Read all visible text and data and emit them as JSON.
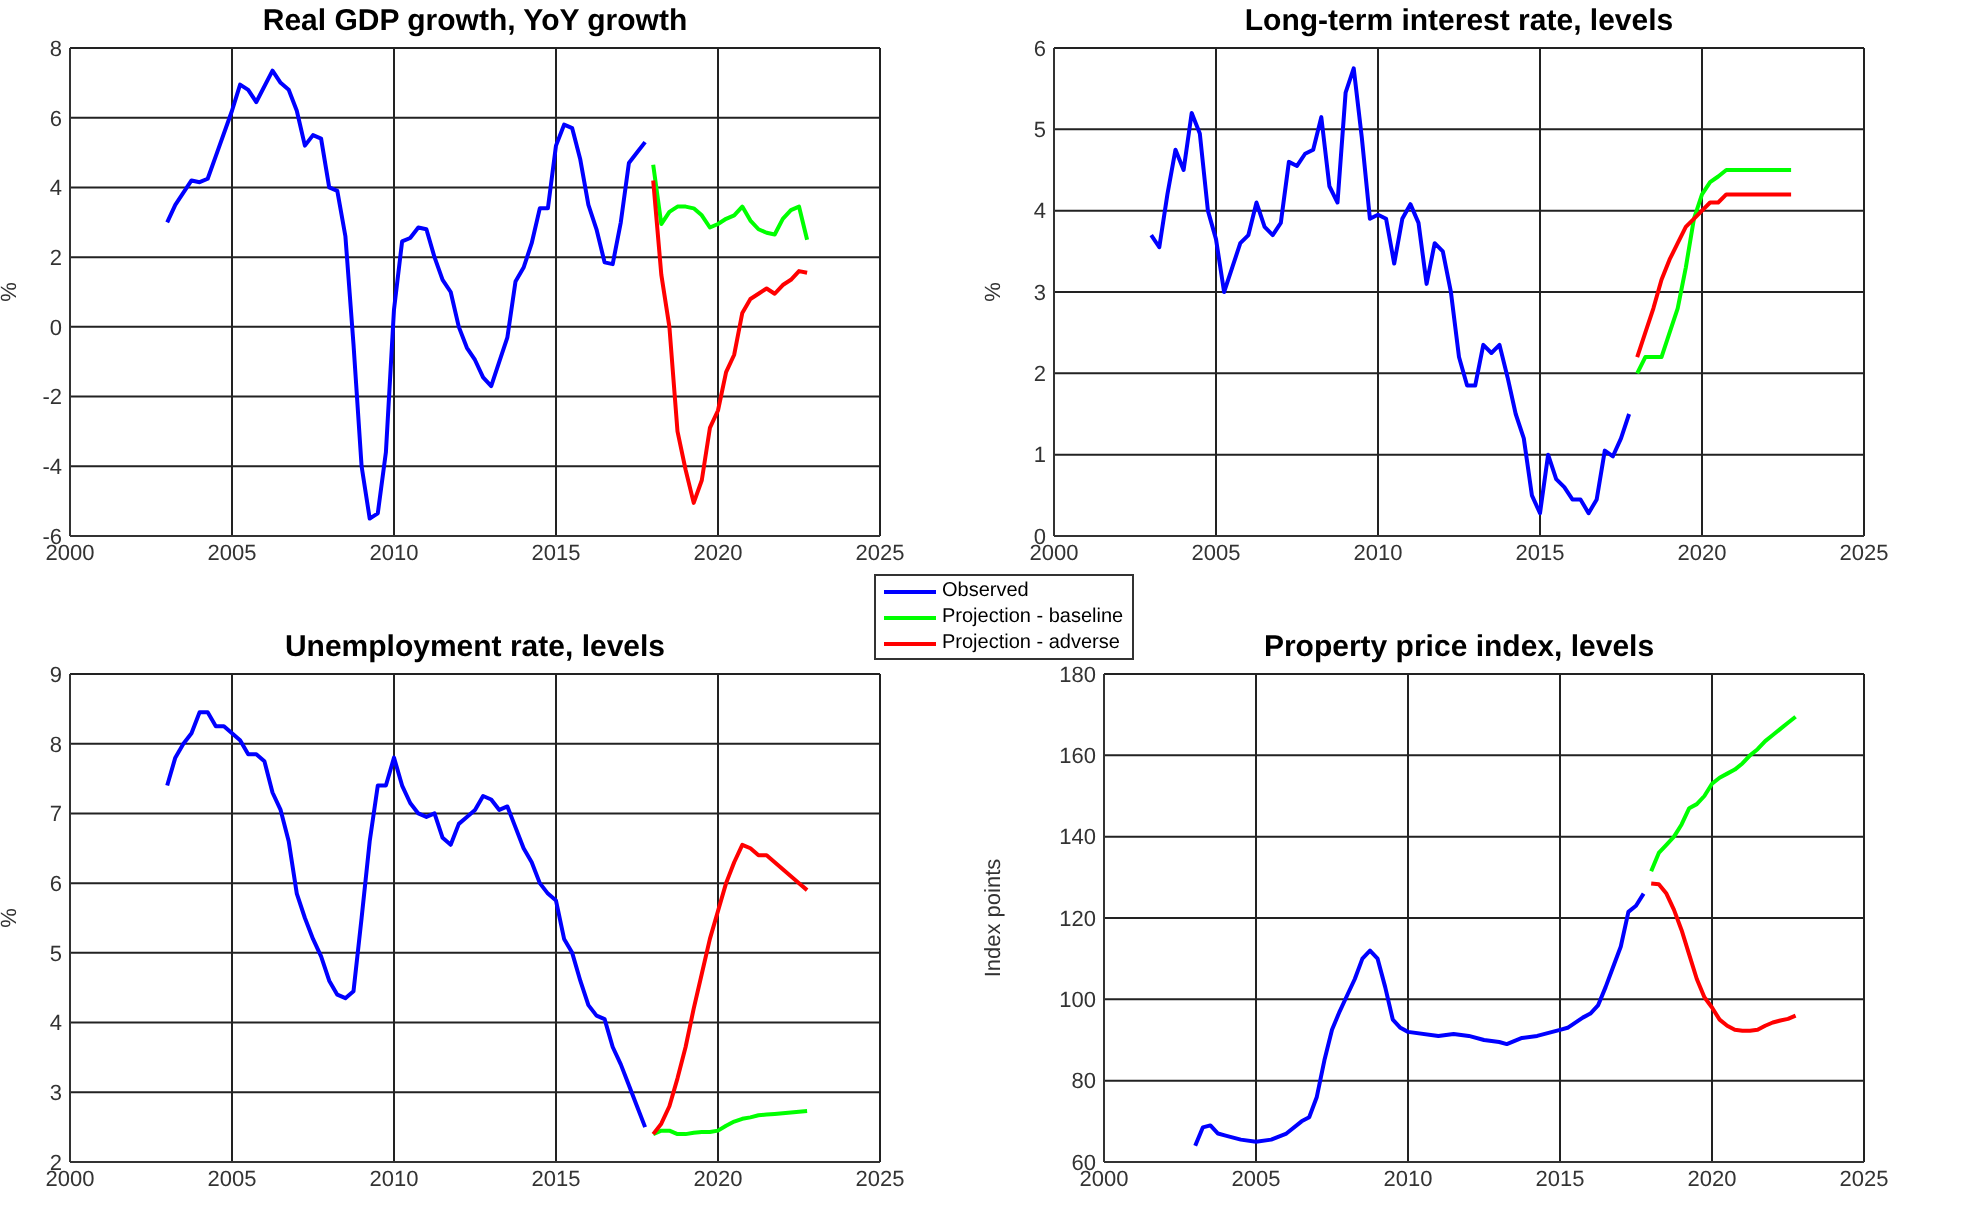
{
  "chart_data": [
    {
      "type": "line",
      "title": "Real GDP growth, YoY growth",
      "ylabel": "%",
      "xlim": [
        2000,
        2025
      ],
      "xticks": [
        2000,
        2005,
        2010,
        2015,
        2020,
        2025
      ],
      "ylim": [
        -6,
        8
      ],
      "yticks": [
        -6,
        -4,
        -2,
        0,
        2,
        4,
        6,
        8
      ],
      "grid": true,
      "legend": "bottom right",
      "series": [
        {
          "name": "Observed",
          "color": "#0000ff",
          "x": [
            2003,
            2003.25,
            2003.75,
            2004,
            2004.25,
            2004.5,
            2005,
            2005.25,
            2005.5,
            2005.75,
            2006.25,
            2006.5,
            2006.75,
            2007,
            2007.25,
            2007.5,
            2007.75,
            2008,
            2008.25,
            2008.5,
            2008.75,
            2009,
            2009.25,
            2009.5,
            2009.75,
            2010,
            2010.25,
            2010.5,
            2010.75,
            2011,
            2011.25,
            2011.5,
            2011.75,
            2012,
            2012.25,
            2012.5,
            2012.75,
            2013,
            2013.25,
            2013.5,
            2013.75,
            2014,
            2014.25,
            2014.5,
            2014.75,
            2015,
            2015.25,
            2015.5,
            2015.75,
            2016,
            2016.25,
            2016.5,
            2016.75,
            2017,
            2017.25,
            2017.5,
            2017.75
          ],
          "values": [
            3.0,
            3.5,
            4.2,
            4.15,
            4.25,
            4.9,
            6.2,
            6.95,
            6.8,
            6.45,
            7.35,
            7.0,
            6.8,
            6.2,
            5.2,
            5.5,
            5.4,
            4.0,
            3.9,
            2.6,
            -0.5,
            -4.0,
            -5.5,
            -5.35,
            -3.6,
            0.5,
            2.45,
            2.55,
            2.85,
            2.8,
            2.0,
            1.35,
            1.0,
            0.0,
            -0.6,
            -0.95,
            -1.45,
            -1.7,
            -1.0,
            -0.3,
            1.3,
            1.7,
            2.4,
            3.4,
            3.4,
            5.2,
            5.8,
            5.7,
            4.8,
            3.5,
            2.8,
            1.85,
            1.8,
            3.0,
            4.7,
            5.0,
            5.3
          ]
        },
        {
          "name": "Projection - baseline",
          "color": "#00ff00",
          "x": [
            2018,
            2018.25,
            2018.5,
            2018.75,
            2019,
            2019.25,
            2019.5,
            2019.75,
            2020,
            2020.25,
            2020.5,
            2020.75,
            2021,
            2021.25,
            2021.5,
            2021.75,
            2022,
            2022.25,
            2022.5,
            2022.75
          ],
          "values": [
            4.65,
            2.95,
            3.3,
            3.45,
            3.45,
            3.4,
            3.2,
            2.85,
            2.95,
            3.1,
            3.2,
            3.45,
            3.05,
            2.8,
            2.7,
            2.65,
            3.1,
            3.35,
            3.45,
            2.5
          ]
        },
        {
          "name": "Projection - adverse",
          "color": "#ff0000",
          "x": [
            2018,
            2018.25,
            2018.5,
            2018.75,
            2019,
            2019.25,
            2019.5,
            2019.75,
            2020,
            2020.25,
            2020.5,
            2020.75,
            2021,
            2021.25,
            2021.5,
            2021.75,
            2022,
            2022.25,
            2022.5,
            2022.75
          ],
          "values": [
            4.2,
            1.5,
            0.0,
            -3.0,
            -4.1,
            -5.05,
            -4.4,
            -2.9,
            -2.4,
            -1.3,
            -0.8,
            0.4,
            0.8,
            0.95,
            1.1,
            0.95,
            1.2,
            1.35,
            1.6,
            1.55
          ]
        }
      ]
    },
    {
      "type": "line",
      "title": "Long-term interest rate, levels",
      "ylabel": "%",
      "xlim": [
        2000,
        2025
      ],
      "xticks": [
        2000,
        2005,
        2010,
        2015,
        2020,
        2025
      ],
      "ylim": [
        0,
        6
      ],
      "yticks": [
        0,
        1,
        2,
        3,
        4,
        5,
        6
      ],
      "grid": true,
      "series": [
        {
          "name": "Observed",
          "color": "#0000ff",
          "x": [
            2003,
            2003.25,
            2003.5,
            2003.75,
            2004,
            2004.25,
            2004.5,
            2004.75,
            2005,
            2005.25,
            2005.5,
            2005.75,
            2006,
            2006.25,
            2006.5,
            2006.75,
            2007,
            2007.25,
            2007.5,
            2007.75,
            2008,
            2008.25,
            2008.5,
            2008.75,
            2009,
            2009.25,
            2009.5,
            2009.75,
            2010,
            2010.25,
            2010.5,
            2010.75,
            2011,
            2011.25,
            2011.5,
            2011.75,
            2012,
            2012.25,
            2012.5,
            2012.75,
            2013,
            2013.25,
            2013.5,
            2013.75,
            2014,
            2014.25,
            2014.5,
            2014.75,
            2015,
            2015.25,
            2015.5,
            2015.75,
            2016,
            2016.25,
            2016.5,
            2016.75,
            2017,
            2017.25,
            2017.5,
            2017.75
          ],
          "values": [
            3.7,
            3.55,
            4.2,
            4.75,
            4.5,
            5.2,
            4.95,
            4.0,
            3.65,
            3.0,
            3.3,
            3.6,
            3.7,
            4.1,
            3.8,
            3.7,
            3.85,
            4.6,
            4.55,
            4.7,
            4.75,
            5.15,
            4.3,
            4.1,
            5.45,
            5.75,
            4.9,
            3.9,
            3.95,
            3.9,
            3.35,
            3.9,
            4.08,
            3.85,
            3.1,
            3.6,
            3.5,
            3.0,
            2.2,
            1.85,
            1.85,
            2.35,
            2.25,
            2.35,
            1.95,
            1.5,
            1.2,
            0.5,
            0.28,
            1.0,
            0.7,
            0.6,
            0.45,
            0.45,
            0.28,
            0.45,
            1.05,
            0.98,
            1.2,
            1.5
          ]
        },
        {
          "name": "Projection - baseline",
          "color": "#00ff00",
          "x": [
            2018,
            2018.25,
            2018.5,
            2018.75,
            2019,
            2019.25,
            2019.5,
            2019.75,
            2020,
            2020.25,
            2020.5,
            2020.75,
            2021,
            2021.25,
            2021.5,
            2021.75,
            2022,
            2022.25,
            2022.5,
            2022.75
          ],
          "values": [
            2.0,
            2.2,
            2.2,
            2.2,
            2.5,
            2.8,
            3.3,
            3.9,
            4.2,
            4.35,
            4.42,
            4.5,
            4.5,
            4.5,
            4.5,
            4.5,
            4.5,
            4.5,
            4.5,
            4.5
          ]
        },
        {
          "name": "Projection - adverse",
          "color": "#ff0000",
          "x": [
            2018,
            2018.25,
            2018.5,
            2018.75,
            2019,
            2019.25,
            2019.5,
            2019.75,
            2020,
            2020.25,
            2020.5,
            2020.75,
            2021,
            2021.25,
            2021.5,
            2021.75,
            2022,
            2022.25,
            2022.5,
            2022.75
          ],
          "values": [
            2.2,
            2.5,
            2.8,
            3.15,
            3.4,
            3.6,
            3.8,
            3.9,
            4.0,
            4.1,
            4.1,
            4.2,
            4.2,
            4.2,
            4.2,
            4.2,
            4.2,
            4.2,
            4.2,
            4.2
          ]
        }
      ]
    },
    {
      "type": "line",
      "title": "Unemployment rate, levels",
      "ylabel": "%",
      "xlim": [
        2000,
        2025
      ],
      "xticks": [
        2000,
        2005,
        2010,
        2015,
        2020,
        2025
      ],
      "ylim": [
        2,
        9
      ],
      "yticks": [
        2,
        3,
        4,
        5,
        6,
        7,
        8,
        9
      ],
      "grid": true,
      "series": [
        {
          "name": "Observed",
          "color": "#0000ff",
          "x": [
            2003,
            2003.25,
            2003.5,
            2003.75,
            2004,
            2004.25,
            2004.5,
            2004.75,
            2005,
            2005.25,
            2005.5,
            2005.75,
            2006,
            2006.25,
            2006.5,
            2006.75,
            2007,
            2007.25,
            2007.5,
            2007.75,
            2008,
            2008.25,
            2008.5,
            2008.75,
            2009,
            2009.25,
            2009.5,
            2009.75,
            2010,
            2010.25,
            2010.5,
            2010.75,
            2011,
            2011.25,
            2011.5,
            2011.75,
            2012,
            2012.25,
            2012.5,
            2012.75,
            2013,
            2013.25,
            2013.5,
            2013.75,
            2014,
            2014.25,
            2014.5,
            2014.75,
            2015,
            2015.25,
            2015.5,
            2015.75,
            2016,
            2016.25,
            2016.5,
            2016.75,
            2017,
            2017.25,
            2017.5,
            2017.75
          ],
          "values": [
            7.4,
            7.8,
            8.0,
            8.15,
            8.45,
            8.45,
            8.25,
            8.25,
            8.15,
            8.05,
            7.85,
            7.85,
            7.75,
            7.3,
            7.05,
            6.6,
            5.85,
            5.5,
            5.2,
            4.95,
            4.6,
            4.4,
            4.35,
            4.45,
            5.5,
            6.6,
            7.4,
            7.4,
            7.8,
            7.4,
            7.15,
            7.0,
            6.95,
            7.0,
            6.65,
            6.55,
            6.85,
            6.95,
            7.05,
            7.25,
            7.2,
            7.05,
            7.1,
            6.8,
            6.5,
            6.3,
            6.0,
            5.85,
            5.75,
            5.2,
            5.0,
            4.6,
            4.25,
            4.1,
            4.05,
            3.65,
            3.4,
            3.1,
            2.8,
            2.5
          ]
        },
        {
          "name": "Projection - baseline",
          "color": "#00ff00",
          "x": [
            2018,
            2018.25,
            2018.5,
            2018.75,
            2019,
            2019.25,
            2019.5,
            2019.75,
            2020,
            2020.25,
            2020.5,
            2020.75,
            2021,
            2021.25,
            2021.5,
            2021.75,
            2022,
            2022.25,
            2022.5,
            2022.75
          ],
          "values": [
            2.4,
            2.45,
            2.45,
            2.4,
            2.4,
            2.42,
            2.43,
            2.43,
            2.45,
            2.52,
            2.58,
            2.62,
            2.64,
            2.67,
            2.68,
            2.69,
            2.7,
            2.71,
            2.72,
            2.73
          ]
        },
        {
          "name": "Projection - adverse",
          "color": "#ff0000",
          "x": [
            2018,
            2018.25,
            2018.5,
            2018.75,
            2019,
            2019.25,
            2019.5,
            2019.75,
            2020,
            2020.25,
            2020.5,
            2020.75,
            2021,
            2021.25,
            2021.5,
            2021.75,
            2022,
            2022.25,
            2022.5,
            2022.75
          ],
          "values": [
            2.4,
            2.55,
            2.8,
            3.2,
            3.65,
            4.2,
            4.7,
            5.2,
            5.6,
            6.0,
            6.3,
            6.55,
            6.5,
            6.4,
            6.4,
            6.3,
            6.2,
            6.1,
            6.0,
            5.9
          ]
        }
      ]
    },
    {
      "type": "line",
      "title": "Property price index, levels",
      "ylabel": "Index points",
      "xlim": [
        2000,
        2025
      ],
      "xticks": [
        2000,
        2005,
        2010,
        2015,
        2020,
        2025
      ],
      "ylim": [
        60,
        180
      ],
      "yticks": [
        60,
        80,
        100,
        120,
        140,
        160,
        180
      ],
      "grid": true,
      "series": [
        {
          "name": "Observed",
          "color": "#0000ff",
          "x": [
            2003,
            2003.25,
            2003.5,
            2003.75,
            2004,
            2004.5,
            2005,
            2005.5,
            2006,
            2006.5,
            2006.75,
            2007,
            2007.25,
            2007.5,
            2007.75,
            2008,
            2008.25,
            2008.5,
            2008.75,
            2009,
            2009.25,
            2009.5,
            2009.75,
            2010,
            2011,
            2011.5,
            2012,
            2012.5,
            2013,
            2013.25,
            2013.75,
            2014.25,
            2014.5,
            2015,
            2015.25,
            2015.75,
            2016,
            2016.25,
            2016.5,
            2016.75,
            2017,
            2017.25,
            2017.5,
            2017.75
          ],
          "values": [
            64,
            68.5,
            69,
            67,
            66.5,
            65.5,
            65,
            65.5,
            67,
            70,
            71,
            76,
            85,
            92.5,
            97,
            101,
            105,
            110,
            112,
            110,
            103,
            95,
            93,
            92,
            91,
            91.5,
            91,
            90,
            89.5,
            89,
            90.5,
            91,
            91.5,
            92.5,
            93,
            95.5,
            96.5,
            98.5,
            103,
            108,
            113,
            121.5,
            123,
            126
          ]
        },
        {
          "name": "Projection - baseline",
          "color": "#00ff00",
          "x": [
            2018,
            2018.25,
            2018.5,
            2018.75,
            2019,
            2019.25,
            2019.5,
            2019.75,
            2020,
            2020.25,
            2020.5,
            2020.75,
            2021,
            2021.25,
            2021.5,
            2021.75,
            2022,
            2022.25,
            2022.5,
            2022.75
          ],
          "values": [
            131.5,
            136,
            138,
            140,
            143,
            147,
            148,
            150,
            153,
            154.5,
            155.5,
            156.5,
            158,
            160,
            161.5,
            163.5,
            165,
            166.5,
            168,
            169.5
          ]
        },
        {
          "name": "Projection - adverse",
          "color": "#ff0000",
          "x": [
            2018,
            2018.25,
            2018.5,
            2018.75,
            2019,
            2019.25,
            2019.5,
            2019.75,
            2020,
            2020.25,
            2020.5,
            2020.75,
            2021,
            2021.25,
            2021.5,
            2021.75,
            2022,
            2022.25,
            2022.5,
            2022.75
          ],
          "values": [
            128.5,
            128.3,
            126,
            122,
            117,
            111,
            105,
            100.5,
            98,
            95,
            93.5,
            92.5,
            92.3,
            92.3,
            92.5,
            93.5,
            94.3,
            94.8,
            95.2,
            96
          ]
        }
      ]
    }
  ]
}
